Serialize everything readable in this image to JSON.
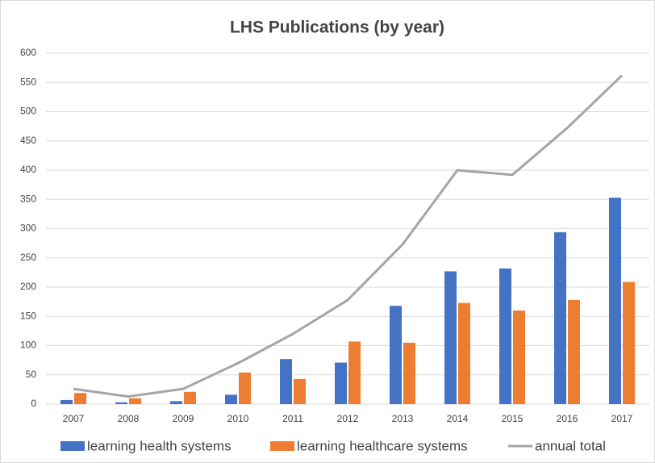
{
  "chart_data": {
    "type": "bar",
    "title": "LHS Publications (by year)",
    "categories": [
      "2007",
      "2008",
      "2009",
      "2010",
      "2011",
      "2012",
      "2013",
      "2014",
      "2015",
      "2016",
      "2017"
    ],
    "series": [
      {
        "name": "learning health systems",
        "color": "#4472c4",
        "values": [
          7,
          3,
          5,
          16,
          77,
          71,
          168,
          227,
          232,
          294,
          353
        ]
      },
      {
        "name": "learning healthcare systems",
        "color": "#ed7d31",
        "values": [
          19,
          10,
          21,
          54,
          43,
          107,
          105,
          173,
          160,
          178,
          209
        ]
      },
      {
        "name": "annual total",
        "color": "#a5a5a5",
        "type": "line",
        "values": [
          26,
          13,
          26,
          70,
          120,
          178,
          273,
          400,
          392,
          472,
          562
        ]
      }
    ],
    "ylim": [
      0,
      600
    ],
    "yticks": [
      0,
      50,
      100,
      150,
      200,
      250,
      300,
      350,
      400,
      450,
      500,
      550,
      600
    ],
    "grid": true,
    "legend": "bottom"
  }
}
